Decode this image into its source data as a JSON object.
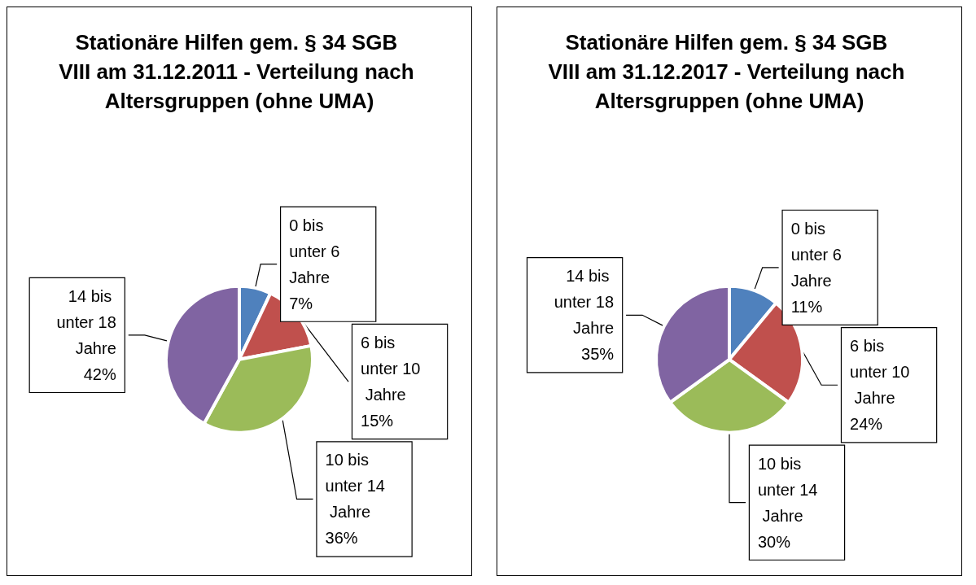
{
  "chart_data": [
    {
      "type": "pie",
      "title": "Stationäre Hilfen gem. § 34 SGB VIII am 31.12.2011 - Verteilung nach Altersgruppen (ohne UMA)",
      "categories": [
        "0 bis unter 6 Jahre",
        "6 bis unter 10 Jahre",
        "10 bis unter 14 Jahre",
        "14 bis unter 18 Jahre"
      ],
      "values": [
        7,
        15,
        36,
        42
      ],
      "value_labels": [
        "7%",
        "15%",
        "36%",
        "42%"
      ],
      "colors": [
        "#4f81bd",
        "#c0504d",
        "#9bbb59",
        "#8064a2"
      ],
      "legend": false
    },
    {
      "type": "pie",
      "title": "Stationäre Hilfen gem. § 34 SGB VIII am 31.12.2017 - Verteilung nach Altersgruppen (ohne UMA)",
      "categories": [
        "0 bis unter 6 Jahre",
        "6 bis unter 10 Jahre",
        "10 bis unter 14 Jahre",
        "14 bis unter 18 Jahre"
      ],
      "values": [
        11,
        24,
        30,
        35
      ],
      "value_labels": [
        "11%",
        "24%",
        "30%",
        "35%"
      ],
      "colors": [
        "#4f81bd",
        "#c0504d",
        "#9bbb59",
        "#8064a2"
      ],
      "legend": false
    }
  ]
}
